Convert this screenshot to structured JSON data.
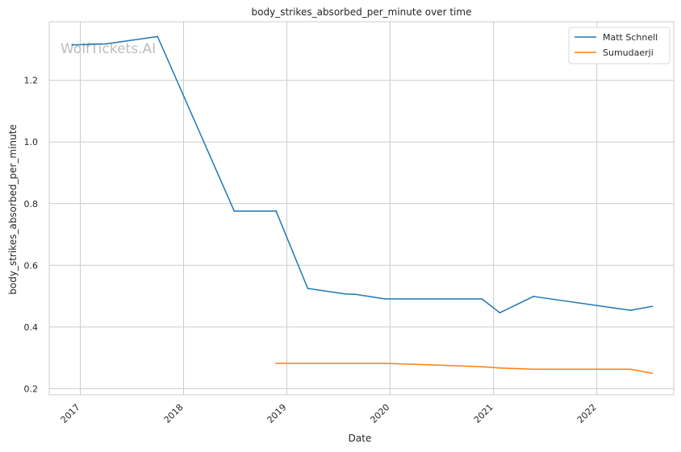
{
  "chart_data": {
    "type": "line",
    "title": "body_strikes_absorbed_per_minute over time",
    "xlabel": "Date",
    "ylabel": "body_strikes_absorbed_per_minute",
    "watermark": "WolfTickets.AI",
    "x_ticks": [
      "2017",
      "2018",
      "2019",
      "2020",
      "2021",
      "2022"
    ],
    "y_ticks": [
      "0.2",
      "0.4",
      "0.6",
      "0.8",
      "1.0",
      "1.2"
    ],
    "xlim": [
      "2016-09-13",
      "2022-09-30"
    ],
    "ylim": [
      0.18,
      1.39
    ],
    "grid": true,
    "legend_position": "top-right",
    "series": [
      {
        "name": "Matt Schnell",
        "color": "#1f77b4",
        "points": [
          {
            "x": "2016-12-03",
            "y": 1.315
          },
          {
            "x": "2017-04-01",
            "y": 1.318
          },
          {
            "x": "2017-10-01",
            "y": 1.342
          },
          {
            "x": "2018-06-29",
            "y": 0.776
          },
          {
            "x": "2018-11-24",
            "y": 0.776
          },
          {
            "x": "2019-03-16",
            "y": 0.525
          },
          {
            "x": "2019-07-27",
            "y": 0.507
          },
          {
            "x": "2019-08-31",
            "y": 0.506
          },
          {
            "x": "2019-12-14",
            "y": 0.491
          },
          {
            "x": "2020-11-21",
            "y": 0.491
          },
          {
            "x": "2021-01-23",
            "y": 0.446
          },
          {
            "x": "2021-05-22",
            "y": 0.499
          },
          {
            "x": "2022-04-30",
            "y": 0.454
          },
          {
            "x": "2022-07-16",
            "y": 0.467
          }
        ]
      },
      {
        "name": "Sumudaerji",
        "color": "#ff7f0e",
        "points": [
          {
            "x": "2018-11-24",
            "y": 0.282
          },
          {
            "x": "2019-12-14",
            "y": 0.282
          },
          {
            "x": "2020-11-21",
            "y": 0.271
          },
          {
            "x": "2021-01-23",
            "y": 0.267
          },
          {
            "x": "2021-05-22",
            "y": 0.263
          },
          {
            "x": "2022-04-30",
            "y": 0.263
          },
          {
            "x": "2022-07-16",
            "y": 0.25
          }
        ]
      }
    ]
  }
}
